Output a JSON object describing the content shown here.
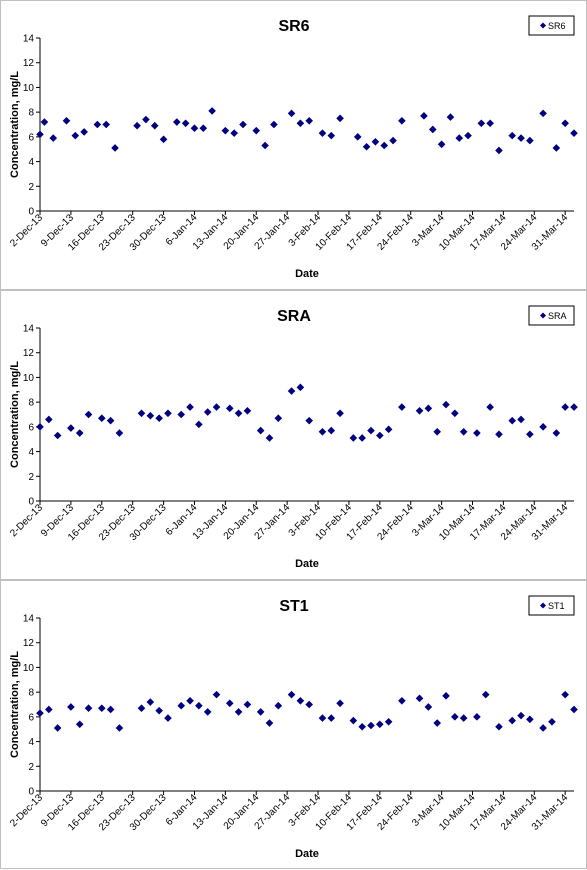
{
  "chart_data": [
    {
      "type": "scatter",
      "title": "SR6",
      "xlabel": "Date",
      "ylabel": "Concentration, mg/L",
      "ylim": [
        0,
        14
      ],
      "yticks": [
        "0",
        "2",
        "4",
        "6",
        "8",
        "10",
        "12",
        "14"
      ],
      "xlim": [
        "2013-12-02",
        "2014-04-02"
      ],
      "xticks": [
        "2-Dec-13",
        "9-Dec-13",
        "16-Dec-13",
        "23-Dec-13",
        "30-Dec-13",
        "6-Jan-14",
        "13-Jan-14",
        "20-Jan-14",
        "27-Jan-14",
        "3-Feb-14",
        "10-Feb-14",
        "17-Feb-14",
        "24-Feb-14",
        "3-Mar-14",
        "10-Mar-14",
        "17-Mar-14",
        "24-Mar-14",
        "31-Mar-14"
      ],
      "legend": "top-right",
      "grid": false,
      "marker_color": "#000080",
      "series": [
        {
          "name": "SR6",
          "x": [
            "2013-12-02",
            "2013-12-03",
            "2013-12-05",
            "2013-12-08",
            "2013-12-10",
            "2013-12-12",
            "2013-12-15",
            "2013-12-17",
            "2013-12-19",
            "2013-12-24",
            "2013-12-26",
            "2013-12-28",
            "2013-12-30",
            "2014-01-02",
            "2014-01-04",
            "2014-01-06",
            "2014-01-08",
            "2014-01-10",
            "2014-01-13",
            "2014-01-15",
            "2014-01-17",
            "2014-01-20",
            "2014-01-22",
            "2014-01-24",
            "2014-01-28",
            "2014-01-30",
            "2014-02-01",
            "2014-02-04",
            "2014-02-06",
            "2014-02-08",
            "2014-02-12",
            "2014-02-14",
            "2014-02-16",
            "2014-02-18",
            "2014-02-20",
            "2014-02-22",
            "2014-02-27",
            "2014-03-01",
            "2014-03-03",
            "2014-03-05",
            "2014-03-07",
            "2014-03-09",
            "2014-03-12",
            "2014-03-14",
            "2014-03-16",
            "2014-03-19",
            "2014-03-21",
            "2014-03-23",
            "2014-03-26",
            "2014-03-29",
            "2014-03-31",
            "2014-04-02"
          ],
          "y": [
            6.2,
            7.2,
            5.9,
            7.3,
            6.1,
            6.4,
            7.0,
            7.0,
            5.1,
            6.9,
            7.4,
            6.9,
            5.8,
            7.2,
            7.1,
            6.7,
            6.7,
            8.1,
            6.5,
            6.3,
            7.0,
            6.5,
            5.3,
            7.0,
            7.9,
            7.1,
            7.3,
            6.3,
            6.1,
            7.5,
            6.0,
            5.2,
            5.6,
            5.3,
            5.7,
            7.3,
            7.7,
            6.6,
            5.4,
            7.6,
            5.9,
            6.1,
            7.1,
            7.1,
            4.9,
            6.1,
            5.9,
            5.7,
            7.9,
            5.1,
            7.1,
            6.3
          ]
        }
      ]
    },
    {
      "type": "scatter",
      "title": "SRA",
      "xlabel": "Date",
      "ylabel": "Concentration, mg/L",
      "ylim": [
        0,
        14
      ],
      "yticks": [
        "0",
        "2",
        "4",
        "6",
        "8",
        "10",
        "12",
        "14"
      ],
      "xlim": [
        "2013-12-02",
        "2014-04-02"
      ],
      "xticks": [
        "2-Dec-13",
        "9-Dec-13",
        "16-Dec-13",
        "23-Dec-13",
        "30-Dec-13",
        "6-Jan-14",
        "13-Jan-14",
        "20-Jan-14",
        "27-Jan-14",
        "3-Feb-14",
        "10-Feb-14",
        "17-Feb-14",
        "24-Feb-14",
        "3-Mar-14",
        "10-Mar-14",
        "17-Mar-14",
        "24-Mar-14",
        "31-Mar-14"
      ],
      "legend": "top-right",
      "grid": false,
      "marker_color": "#000080",
      "series": [
        {
          "name": "SRA",
          "x": [
            "2013-12-02",
            "2013-12-04",
            "2013-12-06",
            "2013-12-09",
            "2013-12-11",
            "2013-12-13",
            "2013-12-16",
            "2013-12-18",
            "2013-12-20",
            "2013-12-25",
            "2013-12-27",
            "2013-12-29",
            "2013-12-31",
            "2014-01-03",
            "2014-01-05",
            "2014-01-07",
            "2014-01-09",
            "2014-01-11",
            "2014-01-14",
            "2014-01-16",
            "2014-01-18",
            "2014-01-21",
            "2014-01-23",
            "2014-01-25",
            "2014-01-28",
            "2014-01-30",
            "2014-02-01",
            "2014-02-04",
            "2014-02-06",
            "2014-02-08",
            "2014-02-11",
            "2014-02-13",
            "2014-02-15",
            "2014-02-17",
            "2014-02-19",
            "2014-02-22",
            "2014-02-26",
            "2014-02-28",
            "2014-03-02",
            "2014-03-04",
            "2014-03-06",
            "2014-03-08",
            "2014-03-11",
            "2014-03-14",
            "2014-03-16",
            "2014-03-19",
            "2014-03-21",
            "2014-03-23",
            "2014-03-26",
            "2014-03-29",
            "2014-03-31",
            "2014-04-02"
          ],
          "y": [
            6.0,
            6.6,
            5.3,
            5.9,
            5.5,
            7.0,
            6.7,
            6.5,
            5.5,
            7.1,
            6.9,
            6.7,
            7.1,
            7.0,
            7.6,
            6.2,
            7.2,
            7.6,
            7.5,
            7.1,
            7.3,
            5.7,
            5.1,
            6.7,
            8.9,
            9.2,
            6.5,
            5.6,
            5.7,
            7.1,
            5.1,
            5.1,
            5.7,
            5.3,
            5.8,
            7.6,
            7.3,
            7.5,
            5.6,
            7.8,
            7.1,
            5.6,
            5.5,
            7.6,
            5.4,
            6.5,
            6.6,
            5.4,
            6.0,
            5.5,
            7.6,
            7.6
          ]
        }
      ]
    },
    {
      "type": "scatter",
      "title": "ST1",
      "xlabel": "Date",
      "ylabel": "Concentration, mg/L",
      "ylim": [
        0,
        14
      ],
      "yticks": [
        "0",
        "2",
        "4",
        "6",
        "8",
        "10",
        "12",
        "14"
      ],
      "xlim": [
        "2013-12-02",
        "2014-04-02"
      ],
      "xticks": [
        "2-Dec-13",
        "9-Dec-13",
        "16-Dec-13",
        "23-Dec-13",
        "30-Dec-13",
        "6-Jan-14",
        "13-Jan-14",
        "20-Jan-14",
        "27-Jan-14",
        "3-Feb-14",
        "10-Feb-14",
        "17-Feb-14",
        "24-Feb-14",
        "3-Mar-14",
        "10-Mar-14",
        "17-Mar-14",
        "24-Mar-14",
        "31-Mar-14"
      ],
      "legend": "top-right",
      "grid": false,
      "marker_color": "#000080",
      "series": [
        {
          "name": "ST1",
          "x": [
            "2013-12-02",
            "2013-12-04",
            "2013-12-06",
            "2013-12-09",
            "2013-12-11",
            "2013-12-13",
            "2013-12-16",
            "2013-12-18",
            "2013-12-20",
            "2013-12-25",
            "2013-12-27",
            "2013-12-29",
            "2013-12-31",
            "2014-01-03",
            "2014-01-05",
            "2014-01-07",
            "2014-01-09",
            "2014-01-11",
            "2014-01-14",
            "2014-01-16",
            "2014-01-18",
            "2014-01-21",
            "2014-01-23",
            "2014-01-25",
            "2014-01-28",
            "2014-01-30",
            "2014-02-01",
            "2014-02-04",
            "2014-02-06",
            "2014-02-08",
            "2014-02-11",
            "2014-02-13",
            "2014-02-15",
            "2014-02-17",
            "2014-02-19",
            "2014-02-22",
            "2014-02-26",
            "2014-02-28",
            "2014-03-02",
            "2014-03-04",
            "2014-03-06",
            "2014-03-08",
            "2014-03-11",
            "2014-03-13",
            "2014-03-16",
            "2014-03-19",
            "2014-03-21",
            "2014-03-23",
            "2014-03-26",
            "2014-03-28",
            "2014-03-31",
            "2014-04-02"
          ],
          "y": [
            6.3,
            6.6,
            5.1,
            6.8,
            5.4,
            6.7,
            6.7,
            6.6,
            5.1,
            6.7,
            7.2,
            6.5,
            5.9,
            6.9,
            7.3,
            6.9,
            6.4,
            7.8,
            7.1,
            6.4,
            7.0,
            6.4,
            5.5,
            6.9,
            7.8,
            7.3,
            7.0,
            5.9,
            5.9,
            7.1,
            5.7,
            5.2,
            5.3,
            5.4,
            5.6,
            7.3,
            7.5,
            6.8,
            5.5,
            7.7,
            6.0,
            5.9,
            6.0,
            7.8,
            5.2,
            5.7,
            6.1,
            5.8,
            5.1,
            5.6,
            7.8,
            6.6
          ]
        }
      ]
    }
  ]
}
